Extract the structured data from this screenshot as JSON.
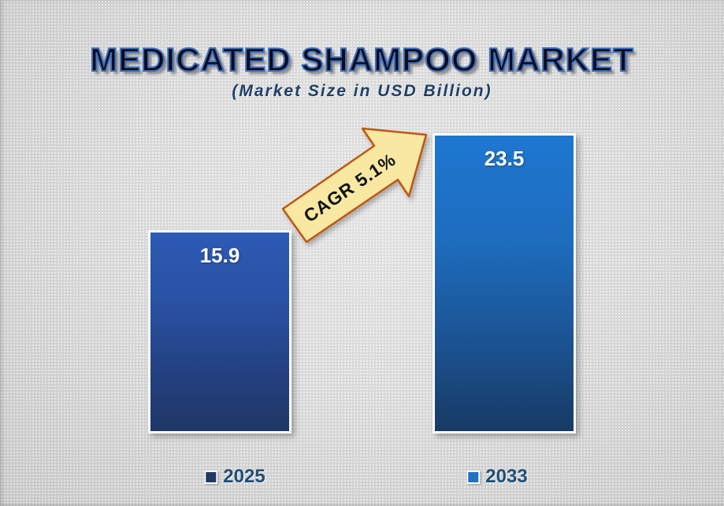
{
  "title": "MEDICATED SHAMPOO MARKET",
  "subtitle": "(Market Size in USD Billion)",
  "annotation": {
    "cagr_label": "CAGR 5.1%"
  },
  "chart_data": {
    "type": "bar",
    "categories": [
      "2025",
      "2033"
    ],
    "values": [
      15.9,
      23.5
    ],
    "value_labels": {
      "y2025": "15.9",
      "y2033": "23.5"
    },
    "title": "MEDICATED SHAMPOO MARKET",
    "subtitle": "(Market Size in USD Billion)",
    "ylabel": "Market Size in USD Billion",
    "ylim": [
      0,
      23.5
    ],
    "grid": false,
    "legend_position": "bottom",
    "legend": {
      "item1": "2025",
      "item2": "2033"
    },
    "annotations": [
      "CAGR 5.1%"
    ]
  },
  "colors": {
    "bar_2025_top": "#2d5ab4",
    "bar_2025_bottom": "#1f3765",
    "bar_2033_top": "#1e77cf",
    "bar_2033_bottom": "#173a63",
    "bar_border": "#fdfdfd",
    "title_fill": "#0c0c16",
    "title_outline": "#3d6fc3",
    "subtitle_color": "#1f4068",
    "legend_text": "#1f4e79",
    "legend_swatch_2025": "#1f3864",
    "legend_swatch_2033": "#2271c2",
    "arrow_fill": "#f8e8a2",
    "arrow_border": "#c2570f",
    "background": "#d4d4d4"
  }
}
